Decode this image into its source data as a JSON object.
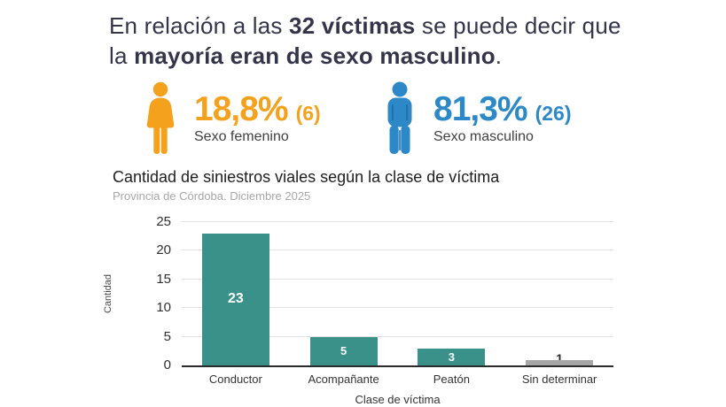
{
  "headline": {
    "line1": {
      "pre": "En relación a las ",
      "bold": "32 víctimas",
      "post": " se puede decir que"
    },
    "line2": {
      "pre": "la ",
      "bold": "mayoría eran de sexo masculino",
      "post": "."
    },
    "color": "#34344A"
  },
  "stats": {
    "female": {
      "percent": "18,8%",
      "count": "(6)",
      "label": "Sexo femenino",
      "color": "#F4A21D"
    },
    "male": {
      "percent": "81,3%",
      "count": "(26)",
      "label": "Sexo masculino",
      "color": "#2D88C8",
      "shade": "#1F6FA9"
    }
  },
  "chart_data": {
    "type": "bar",
    "title": "Cantidad de siniestros viales según la clase de víctima",
    "subtitle": "Provincia de Córdoba. Diciembre 2025",
    "categories": [
      "Conductor",
      "Acompañante",
      "Peatón",
      "Sin determinar"
    ],
    "values": [
      23,
      5,
      3,
      1
    ],
    "bar_colors": [
      "#39918A",
      "#39918A",
      "#39918A",
      "#A6A6A6"
    ],
    "value_label_colors": [
      "#FFFFFF",
      "#FFFFFF",
      "#FFFFFF",
      "#2B2B2B"
    ],
    "xlabel": "Clase de víctima",
    "ylabel": "Cantidad",
    "ylim": [
      0,
      25
    ],
    "yticks": [
      0,
      5,
      10,
      15,
      20,
      25
    ],
    "grid": "horizontal",
    "gridline_color": "#E2E2E2",
    "axis_line_color": "#2B2B2B",
    "legend": "none"
  }
}
